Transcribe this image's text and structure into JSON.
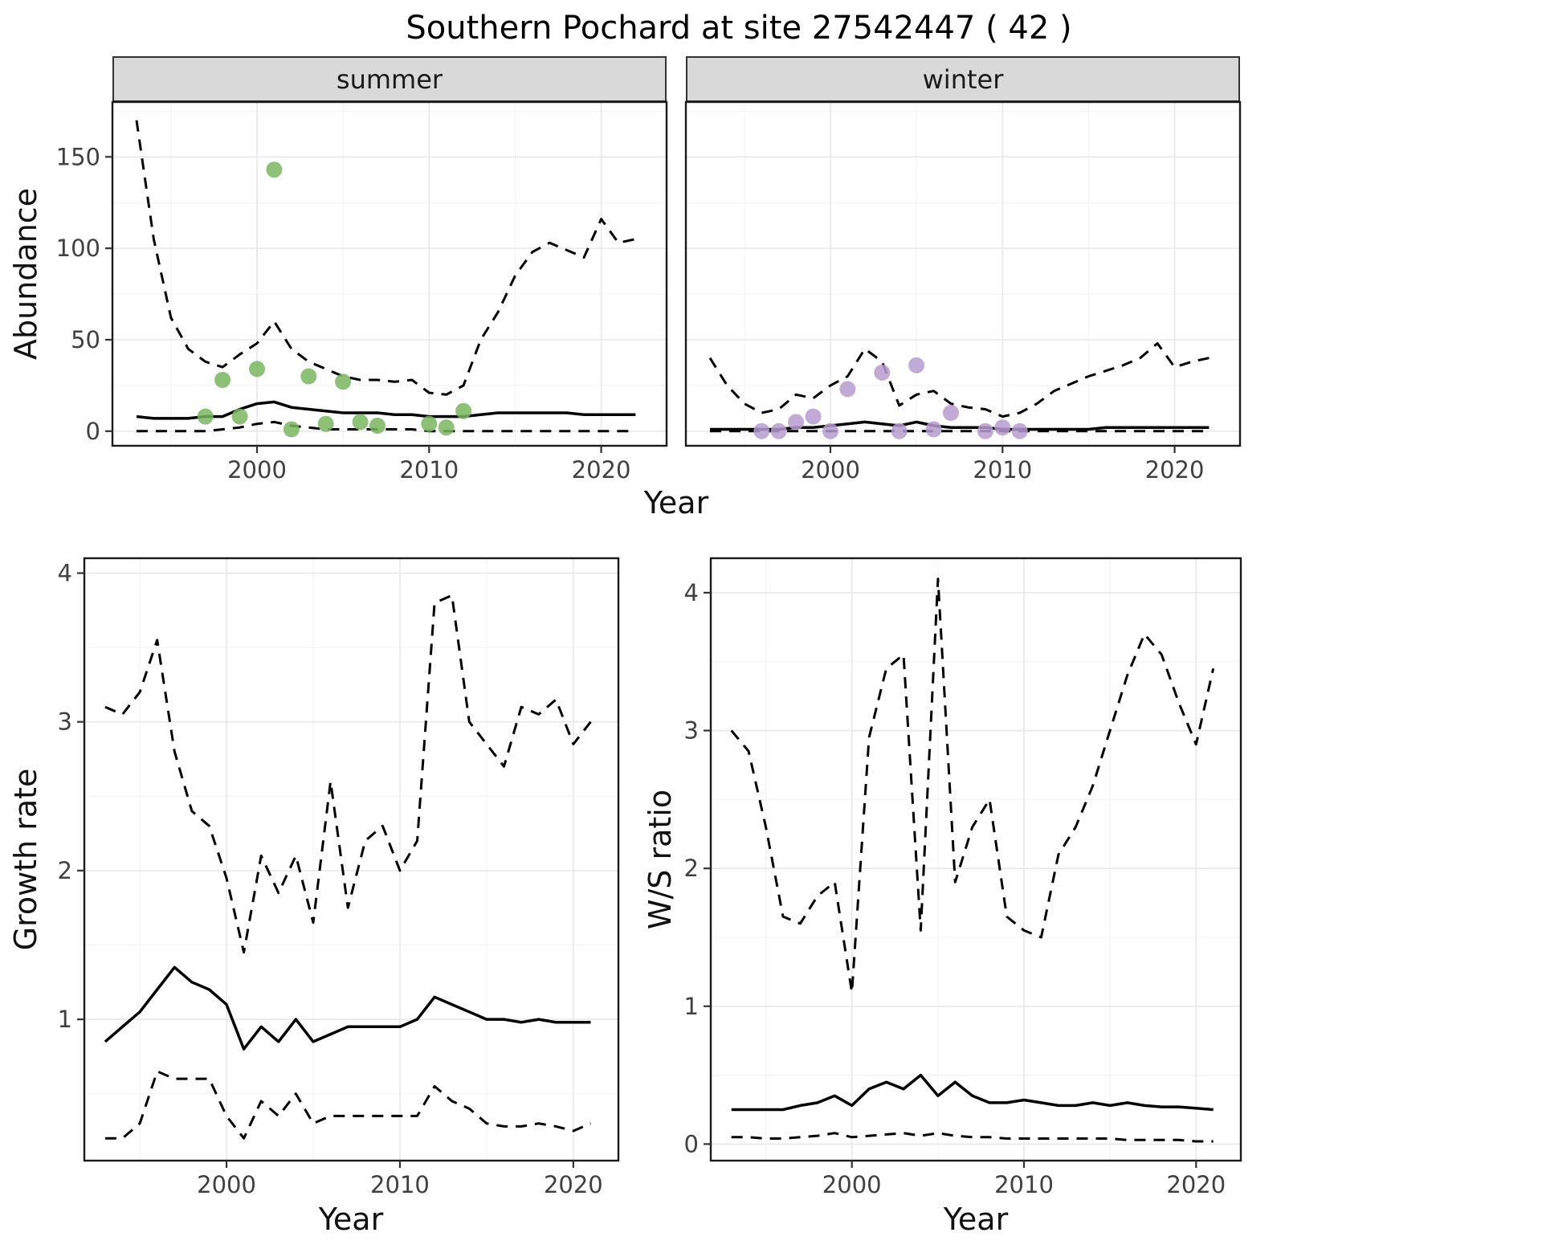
{
  "title": "Southern Pochard at site 27542447 ( 42 )",
  "facets": [
    "summer",
    "winter"
  ],
  "labels": {
    "abundance": "Abundance",
    "year": "Year",
    "growth": "Growth rate",
    "ws": "W/S ratio"
  },
  "colors": {
    "summer_points": "#78b65e",
    "winter_points": "#b79bd0",
    "line": "#000000",
    "strip_bg": "#d9d9d9",
    "grid_major": "#e8e8e8",
    "grid_minor": "#f4f4f4",
    "panel_border": "#1a1a1a"
  },
  "chart_data": [
    {
      "id": "abundance_summer",
      "type": "line+scatter",
      "facet": "summer",
      "xlabel": "Year",
      "ylabel": "Abundance",
      "xlim": [
        1991.6,
        2023.8
      ],
      "ylim": [
        -8,
        180
      ],
      "xticks": {
        "values": [
          2000,
          2010,
          2020
        ],
        "labels": [
          "2000",
          "2010",
          "2020"
        ]
      },
      "yticks": {
        "values": [
          0,
          50,
          100,
          150
        ],
        "labels": [
          "0",
          "50",
          "100",
          "150"
        ]
      },
      "x": [
        1993,
        1994,
        1995,
        1996,
        1997,
        1998,
        1999,
        2000,
        2001,
        2002,
        2003,
        2004,
        2005,
        2006,
        2007,
        2008,
        2009,
        2010,
        2011,
        2012,
        2013,
        2014,
        2015,
        2016,
        2017,
        2018,
        2019,
        2020,
        2021,
        2022
      ],
      "series": [
        {
          "name": "upper_ci",
          "linetype": "dashed",
          "y": [
            170,
            105,
            62,
            45,
            38,
            35,
            42,
            48,
            60,
            45,
            38,
            34,
            30,
            28,
            28,
            27,
            28,
            21,
            20,
            25,
            50,
            65,
            85,
            98,
            103,
            99,
            95,
            116,
            103,
            105
          ]
        },
        {
          "name": "fit",
          "linetype": "solid",
          "y": [
            8,
            7,
            7,
            7,
            8,
            8,
            12,
            15,
            16,
            13,
            12,
            11,
            10,
            10,
            10,
            9,
            9,
            8,
            8,
            8,
            9,
            10,
            10,
            10,
            10,
            10,
            9,
            9,
            9,
            9
          ]
        },
        {
          "name": "lower_ci",
          "linetype": "dashed",
          "y": [
            0,
            0,
            0,
            0,
            0,
            1,
            2,
            4,
            5,
            3,
            2,
            1,
            1,
            1,
            1,
            1,
            1,
            0,
            0,
            0,
            0,
            0,
            0,
            0,
            0,
            0,
            0,
            0,
            0,
            0
          ]
        }
      ],
      "points": {
        "name": "summer observations",
        "color": "#78b65e",
        "x": [
          1997,
          1998,
          1999,
          2000,
          2001,
          2002,
          2003,
          2004,
          2005,
          2006,
          2007,
          2010,
          2011,
          2012
        ],
        "y": [
          8,
          28,
          8,
          34,
          143,
          1,
          30,
          4,
          27,
          5,
          3,
          4,
          2,
          11
        ]
      }
    },
    {
      "id": "abundance_winter",
      "type": "line+scatter",
      "facet": "winter",
      "xlabel": "Year",
      "ylabel": "Abundance",
      "xlim": [
        1991.6,
        2023.8
      ],
      "ylim": [
        -8,
        180
      ],
      "xticks": {
        "values": [
          2000,
          2010,
          2020
        ],
        "labels": [
          "2000",
          "2010",
          "2020"
        ]
      },
      "yticks": {
        "values": [
          0,
          50,
          100,
          150
        ],
        "labels": [
          "0",
          "50",
          "100",
          "150"
        ]
      },
      "x": [
        1993,
        1994,
        1995,
        1996,
        1997,
        1998,
        1999,
        2000,
        2001,
        2002,
        2003,
        2004,
        2005,
        2006,
        2007,
        2008,
        2009,
        2010,
        2011,
        2012,
        2013,
        2014,
        2015,
        2016,
        2017,
        2018,
        2019,
        2020,
        2021,
        2022
      ],
      "series": [
        {
          "name": "upper_ci",
          "linetype": "dashed",
          "y": [
            40,
            25,
            15,
            10,
            12,
            20,
            18,
            25,
            30,
            45,
            38,
            14,
            20,
            22,
            15,
            13,
            12,
            8,
            10,
            15,
            22,
            26,
            30,
            33,
            36,
            40,
            48,
            35,
            38,
            40
          ]
        },
        {
          "name": "fit",
          "linetype": "solid",
          "y": [
            1,
            1,
            1,
            1,
            1,
            2,
            2,
            3,
            4,
            5,
            4,
            3,
            5,
            3,
            2,
            2,
            2,
            1,
            1,
            1,
            1,
            1,
            1,
            2,
            2,
            2,
            2,
            2,
            2,
            2
          ]
        },
        {
          "name": "lower_ci",
          "linetype": "dashed",
          "y": [
            0,
            0,
            0,
            0,
            0,
            0,
            0,
            0,
            0,
            0,
            0,
            0,
            0,
            0,
            0,
            0,
            0,
            0,
            0,
            0,
            0,
            0,
            0,
            0,
            0,
            0,
            0,
            0,
            0,
            0
          ]
        }
      ],
      "points": {
        "name": "winter observations",
        "color": "#b79bd0",
        "x": [
          1996,
          1997,
          1998,
          1999,
          2000,
          2001,
          2003,
          2004,
          2005,
          2006,
          2007,
          2009,
          2010,
          2011
        ],
        "y": [
          0,
          0,
          5,
          8,
          0,
          23,
          32,
          0,
          36,
          1,
          10,
          0,
          2,
          0
        ]
      }
    },
    {
      "id": "growth_rate",
      "type": "line",
      "facet": "",
      "xlabel": "Year",
      "ylabel": "Growth rate",
      "xlim": [
        1991.8,
        2022.6
      ],
      "ylim": [
        0.05,
        4.1
      ],
      "xticks": {
        "values": [
          2000,
          2010,
          2020
        ],
        "labels": [
          "2000",
          "2010",
          "2020"
        ]
      },
      "yticks": {
        "values": [
          1,
          2,
          3,
          4
        ],
        "labels": [
          "1",
          "2",
          "3",
          "4"
        ]
      },
      "x": [
        1993,
        1994,
        1995,
        1996,
        1997,
        1998,
        1999,
        2000,
        2001,
        2002,
        2003,
        2004,
        2005,
        2006,
        2007,
        2008,
        2009,
        2010,
        2011,
        2012,
        2013,
        2014,
        2015,
        2016,
        2017,
        2018,
        2019,
        2020,
        2021
      ],
      "series": [
        {
          "name": "upper_ci",
          "linetype": "dashed",
          "y": [
            3.1,
            3.05,
            3.2,
            3.55,
            2.8,
            2.4,
            2.3,
            1.95,
            1.45,
            2.1,
            1.85,
            2.1,
            1.65,
            2.6,
            1.75,
            2.2,
            2.3,
            2.0,
            2.2,
            3.8,
            3.85,
            3.0,
            2.85,
            2.7,
            3.1,
            3.05,
            3.15,
            2.85,
            3.0
          ]
        },
        {
          "name": "fit",
          "linetype": "solid",
          "y": [
            0.85,
            0.95,
            1.05,
            1.2,
            1.35,
            1.25,
            1.2,
            1.1,
            0.8,
            0.95,
            0.85,
            1.0,
            0.85,
            0.9,
            0.95,
            0.95,
            0.95,
            0.95,
            1.0,
            1.15,
            1.1,
            1.05,
            1.0,
            1.0,
            0.98,
            1.0,
            0.98,
            0.98,
            0.98
          ]
        },
        {
          "name": "lower_ci",
          "linetype": "dashed",
          "y": [
            0.2,
            0.2,
            0.3,
            0.65,
            0.6,
            0.6,
            0.6,
            0.35,
            0.2,
            0.45,
            0.35,
            0.5,
            0.3,
            0.35,
            0.35,
            0.35,
            0.35,
            0.35,
            0.35,
            0.55,
            0.45,
            0.4,
            0.3,
            0.28,
            0.28,
            0.3,
            0.28,
            0.25,
            0.3
          ]
        }
      ]
    },
    {
      "id": "ws_ratio",
      "type": "line",
      "facet": "",
      "xlabel": "Year",
      "ylabel": "W/S ratio",
      "xlim": [
        1991.8,
        2022.6
      ],
      "ylim": [
        -0.12,
        4.25
      ],
      "xticks": {
        "values": [
          2000,
          2010,
          2020
        ],
        "labels": [
          "2000",
          "2010",
          "2020"
        ]
      },
      "yticks": {
        "values": [
          0,
          1,
          2,
          3,
          4
        ],
        "labels": [
          "0",
          "1",
          "2",
          "3",
          "4"
        ]
      },
      "x": [
        1993,
        1994,
        1995,
        1996,
        1997,
        1998,
        1999,
        2000,
        2001,
        2002,
        2003,
        2004,
        2005,
        2006,
        2007,
        2008,
        2009,
        2010,
        2011,
        2012,
        2013,
        2014,
        2015,
        2016,
        2017,
        2018,
        2019,
        2020,
        2021
      ],
      "series": [
        {
          "name": "upper_ci",
          "linetype": "dashed",
          "y": [
            3.0,
            2.85,
            2.3,
            1.65,
            1.6,
            1.8,
            1.9,
            1.1,
            2.95,
            3.45,
            3.55,
            1.55,
            4.1,
            1.9,
            2.3,
            2.5,
            1.65,
            1.55,
            1.5,
            2.1,
            2.3,
            2.6,
            3.0,
            3.4,
            3.7,
            3.55,
            3.2,
            2.9,
            3.45
          ]
        },
        {
          "name": "fit",
          "linetype": "solid",
          "y": [
            0.25,
            0.25,
            0.25,
            0.25,
            0.28,
            0.3,
            0.35,
            0.28,
            0.4,
            0.45,
            0.4,
            0.5,
            0.35,
            0.45,
            0.35,
            0.3,
            0.3,
            0.32,
            0.3,
            0.28,
            0.28,
            0.3,
            0.28,
            0.3,
            0.28,
            0.27,
            0.27,
            0.26,
            0.25
          ]
        },
        {
          "name": "lower_ci",
          "linetype": "dashed",
          "y": [
            0.05,
            0.05,
            0.04,
            0.04,
            0.05,
            0.06,
            0.08,
            0.05,
            0.06,
            0.07,
            0.08,
            0.06,
            0.08,
            0.06,
            0.05,
            0.05,
            0.04,
            0.04,
            0.04,
            0.04,
            0.04,
            0.04,
            0.04,
            0.03,
            0.03,
            0.03,
            0.03,
            0.02,
            0.02
          ]
        }
      ]
    }
  ]
}
